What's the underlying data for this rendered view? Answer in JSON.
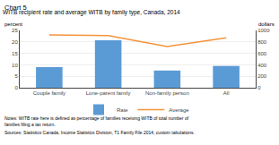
{
  "chart_data": {
    "type": "bar",
    "title": "WITB recipient rate and average WITB by family type, Canada, 2014",
    "annotations": [
      "Chart 5",
      "Notes: WITB rate here is defined as percentage of families receiving WITB of total number of families filing a tax return.",
      "Sources: Statistics Canada, Income Statistics Division, T1 Family File 2014, custom tabulations."
    ],
    "ylabel": "percent",
    "y2label": "dollars",
    "categories": [
      "Couple family",
      "Lone-parent family",
      "Non-family person",
      "All"
    ],
    "series": [
      {
        "name": "Rate",
        "type": "bar",
        "color": "#5b9bd5",
        "values": [
          9.0,
          20.7,
          7.5,
          9.5
        ]
      },
      {
        "name": "Average",
        "type": "line",
        "color": "#f4943b",
        "axis": "y2",
        "values": [
          920,
          910,
          720,
          870
        ]
      }
    ],
    "ylim": [
      0,
      25
    ],
    "yticks": [
      0,
      5,
      10,
      15,
      20,
      25
    ],
    "y2lim": [
      0,
      1000
    ],
    "y2ticks": [
      0,
      200,
      400,
      600,
      800,
      1000
    ],
    "grid": true,
    "legend": "bottom"
  }
}
